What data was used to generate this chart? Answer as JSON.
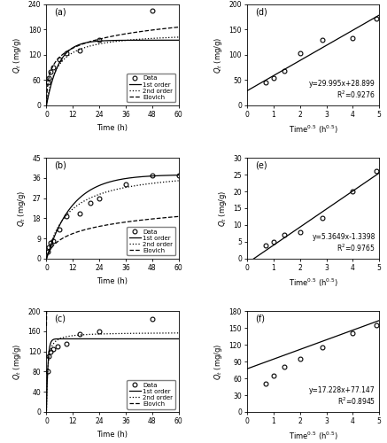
{
  "panel_a": {
    "label": "(a)",
    "data_x": [
      0.5,
      1,
      2,
      3,
      6,
      9,
      15,
      24,
      48
    ],
    "data_y": [
      55,
      65,
      80,
      90,
      110,
      125,
      130,
      155,
      225
    ],
    "ylim": [
      0,
      240
    ],
    "yticks": [
      0,
      60,
      120,
      180,
      240
    ],
    "xlim": [
      0,
      60
    ],
    "xticks": [
      0,
      12,
      24,
      36,
      48,
      60
    ],
    "ylabel": "$Q_t$ (mg/g)",
    "xlabel": "Time (h)",
    "first_order": {
      "qe": 155,
      "k1": 0.18
    },
    "second_order": {
      "qe": 175,
      "k2": 0.0012
    },
    "elovich": {
      "alpha": 200,
      "beta": 0.032
    }
  },
  "panel_b": {
    "label": "(b)",
    "data_x": [
      0.5,
      1,
      2,
      3,
      6,
      9,
      15,
      20,
      24,
      36,
      48,
      60
    ],
    "data_y": [
      3,
      5,
      7,
      8,
      13,
      19,
      20,
      25,
      27,
      33,
      37,
      37
    ],
    "ylim": [
      0,
      45
    ],
    "yticks": [
      0,
      9,
      18,
      27,
      36,
      45
    ],
    "xlim": [
      0,
      60
    ],
    "xticks": [
      0,
      12,
      24,
      36,
      48,
      60
    ],
    "ylabel": "$Q_t$ (mg/g)",
    "xlabel": "Time (h)",
    "first_order": {
      "qe": 37.5,
      "k1": 0.085
    },
    "second_order": {
      "qe": 40.5,
      "k2": 0.0025
    },
    "elovich": {
      "alpha": 3.5,
      "beta": 0.2
    }
  },
  "panel_c": {
    "label": "(c)",
    "data_x": [
      0.5,
      1,
      2,
      3,
      5,
      9,
      15,
      24,
      48
    ],
    "data_y": [
      80,
      110,
      120,
      125,
      130,
      135,
      155,
      160,
      185
    ],
    "ylim": [
      0,
      200
    ],
    "yticks": [
      0,
      40,
      80,
      120,
      160,
      200
    ],
    "xlim": [
      0,
      60
    ],
    "xticks": [
      0,
      12,
      24,
      36,
      48,
      60
    ],
    "ylabel": "$Q_t$ (mg/g)",
    "xlabel": "Time (h)",
    "first_order": {
      "qe": 145,
      "k1": 1.5
    },
    "second_order": {
      "qe": 158,
      "k2": 0.012
    },
    "elovich": {
      "alpha": 100000000.0,
      "beta": 0.065
    }
  },
  "panel_d": {
    "label": "(d)",
    "data_x": [
      0.71,
      1.0,
      1.41,
      2.0,
      2.83,
      4.0,
      4.9
    ],
    "data_y": [
      45,
      55,
      68,
      103,
      130,
      133,
      172
    ],
    "ylim": [
      0,
      200
    ],
    "yticks": [
      0,
      50,
      100,
      150,
      200
    ],
    "xlim": [
      0,
      5
    ],
    "xticks": [
      0,
      1,
      2,
      3,
      4,
      5
    ],
    "ylabel": "$Q_t$ (mg/g)",
    "slope": 29.995,
    "intercept": 28.899,
    "r2": "R$^2$=0.9276",
    "eq": "y=29.995x+28.899"
  },
  "panel_e": {
    "label": "(e)",
    "data_x": [
      0.71,
      1.0,
      1.41,
      2.0,
      2.83,
      4.0,
      4.9
    ],
    "data_y": [
      4,
      5,
      7,
      8,
      12,
      20,
      26
    ],
    "ylim": [
      0,
      30
    ],
    "yticks": [
      0,
      5,
      10,
      15,
      20,
      25,
      30
    ],
    "xlim": [
      0,
      5
    ],
    "xticks": [
      0,
      1,
      2,
      3,
      4,
      5
    ],
    "ylabel": "$Q_t$ (mg/g)",
    "slope": 5.3649,
    "intercept": -1.3398,
    "r2": "R$^2$=0.9765",
    "eq": "y=5.3649x-1.3398"
  },
  "panel_f": {
    "label": "(f)",
    "data_x": [
      0.71,
      1.0,
      1.41,
      2.0,
      2.83,
      4.0,
      4.9
    ],
    "data_y": [
      50,
      65,
      80,
      95,
      115,
      140,
      155
    ],
    "ylim": [
      0,
      180
    ],
    "yticks": [
      0,
      30,
      60,
      90,
      120,
      150,
      180
    ],
    "xlim": [
      0,
      5
    ],
    "xticks": [
      0,
      1,
      2,
      3,
      4,
      5
    ],
    "ylabel": "$Q_t$ (mg/g)",
    "slope": 17.228,
    "intercept": 77.147,
    "r2": "R$^2$=0.8945",
    "eq": "y=17.228x+77.147"
  }
}
